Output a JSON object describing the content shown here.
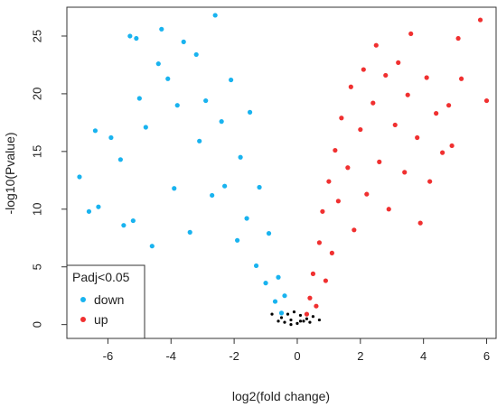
{
  "chart_data": {
    "type": "scatter",
    "title": "",
    "xlabel": "log2(fold change)",
    "ylabel": "-log10(Pvalue)",
    "xlim": [
      -7.3,
      6.3
    ],
    "ylim": [
      -1.2,
      27.5
    ],
    "x_ticks": [
      -6,
      -4,
      -2,
      0,
      2,
      4,
      6
    ],
    "y_ticks": [
      0,
      5,
      10,
      15,
      20,
      25
    ],
    "grid": false,
    "legend": {
      "title": "Padj<0.05",
      "position": "bottom-left",
      "entries": [
        {
          "label": "down",
          "color": "#19b3ef"
        },
        {
          "label": "up",
          "color": "#f03030"
        }
      ]
    },
    "series": [
      {
        "name": "down",
        "color": "#19b3ef",
        "points": [
          [
            -6.9,
            12.8
          ],
          [
            -6.6,
            9.8
          ],
          [
            -6.4,
            16.8
          ],
          [
            -6.3,
            10.2
          ],
          [
            -5.9,
            16.2
          ],
          [
            -5.6,
            14.3
          ],
          [
            -5.5,
            8.6
          ],
          [
            -5.3,
            25.0
          ],
          [
            -5.2,
            9.0
          ],
          [
            -5.1,
            24.8
          ],
          [
            -5.0,
            19.6
          ],
          [
            -4.8,
            17.1
          ],
          [
            -4.6,
            6.8
          ],
          [
            -4.4,
            22.6
          ],
          [
            -4.3,
            25.6
          ],
          [
            -4.1,
            21.3
          ],
          [
            -3.9,
            11.8
          ],
          [
            -3.8,
            19.0
          ],
          [
            -3.6,
            24.5
          ],
          [
            -3.4,
            8.0
          ],
          [
            -3.2,
            23.4
          ],
          [
            -3.1,
            15.9
          ],
          [
            -2.9,
            19.4
          ],
          [
            -2.7,
            11.2
          ],
          [
            -2.6,
            26.8
          ],
          [
            -2.4,
            17.6
          ],
          [
            -2.3,
            12.0
          ],
          [
            -2.1,
            21.2
          ],
          [
            -1.9,
            7.3
          ],
          [
            -1.8,
            14.5
          ],
          [
            -1.6,
            9.2
          ],
          [
            -1.5,
            18.4
          ],
          [
            -1.3,
            5.1
          ],
          [
            -1.2,
            11.9
          ],
          [
            -1.0,
            3.6
          ],
          [
            -0.9,
            7.9
          ],
          [
            -0.7,
            2.0
          ],
          [
            -0.6,
            4.1
          ],
          [
            -0.5,
            1.0
          ],
          [
            -0.4,
            2.5
          ]
        ]
      },
      {
        "name": "up",
        "color": "#f03030",
        "points": [
          [
            0.3,
            0.9
          ],
          [
            0.4,
            2.3
          ],
          [
            0.5,
            4.4
          ],
          [
            0.6,
            1.6
          ],
          [
            0.7,
            7.1
          ],
          [
            0.8,
            9.8
          ],
          [
            0.9,
            3.8
          ],
          [
            1.0,
            12.4
          ],
          [
            1.1,
            6.2
          ],
          [
            1.2,
            15.1
          ],
          [
            1.3,
            10.7
          ],
          [
            1.4,
            17.9
          ],
          [
            1.6,
            13.6
          ],
          [
            1.7,
            20.6
          ],
          [
            1.8,
            8.2
          ],
          [
            2.0,
            16.9
          ],
          [
            2.1,
            22.1
          ],
          [
            2.2,
            11.3
          ],
          [
            2.4,
            19.2
          ],
          [
            2.5,
            24.2
          ],
          [
            2.6,
            14.1
          ],
          [
            2.8,
            21.6
          ],
          [
            2.9,
            10.0
          ],
          [
            3.1,
            17.3
          ],
          [
            3.2,
            22.7
          ],
          [
            3.4,
            13.2
          ],
          [
            3.5,
            19.9
          ],
          [
            3.6,
            25.2
          ],
          [
            3.8,
            16.2
          ],
          [
            3.9,
            8.8
          ],
          [
            4.1,
            21.4
          ],
          [
            4.2,
            12.4
          ],
          [
            4.4,
            18.3
          ],
          [
            4.6,
            14.9
          ],
          [
            4.8,
            19.0
          ],
          [
            4.9,
            15.5
          ],
          [
            5.1,
            24.8
          ],
          [
            5.2,
            21.3
          ],
          [
            5.8,
            26.4
          ],
          [
            6.0,
            19.4
          ]
        ]
      },
      {
        "name": "",
        "color": "#000000",
        "points": [
          [
            -0.6,
            0.3
          ],
          [
            -0.5,
            0.6
          ],
          [
            -0.4,
            0.2
          ],
          [
            -0.3,
            0.9
          ],
          [
            -0.2,
            0.4
          ],
          [
            -0.1,
            1.1
          ],
          [
            0.0,
            0.1
          ],
          [
            0.1,
            0.8
          ],
          [
            0.2,
            0.3
          ],
          [
            0.3,
            0.5
          ],
          [
            0.4,
            0.2
          ],
          [
            0.5,
            0.7
          ],
          [
            -0.8,
            0.9
          ],
          [
            0.7,
            0.4
          ],
          [
            -0.2,
            0.0
          ],
          [
            0.1,
            0.3
          ]
        ]
      }
    ]
  }
}
